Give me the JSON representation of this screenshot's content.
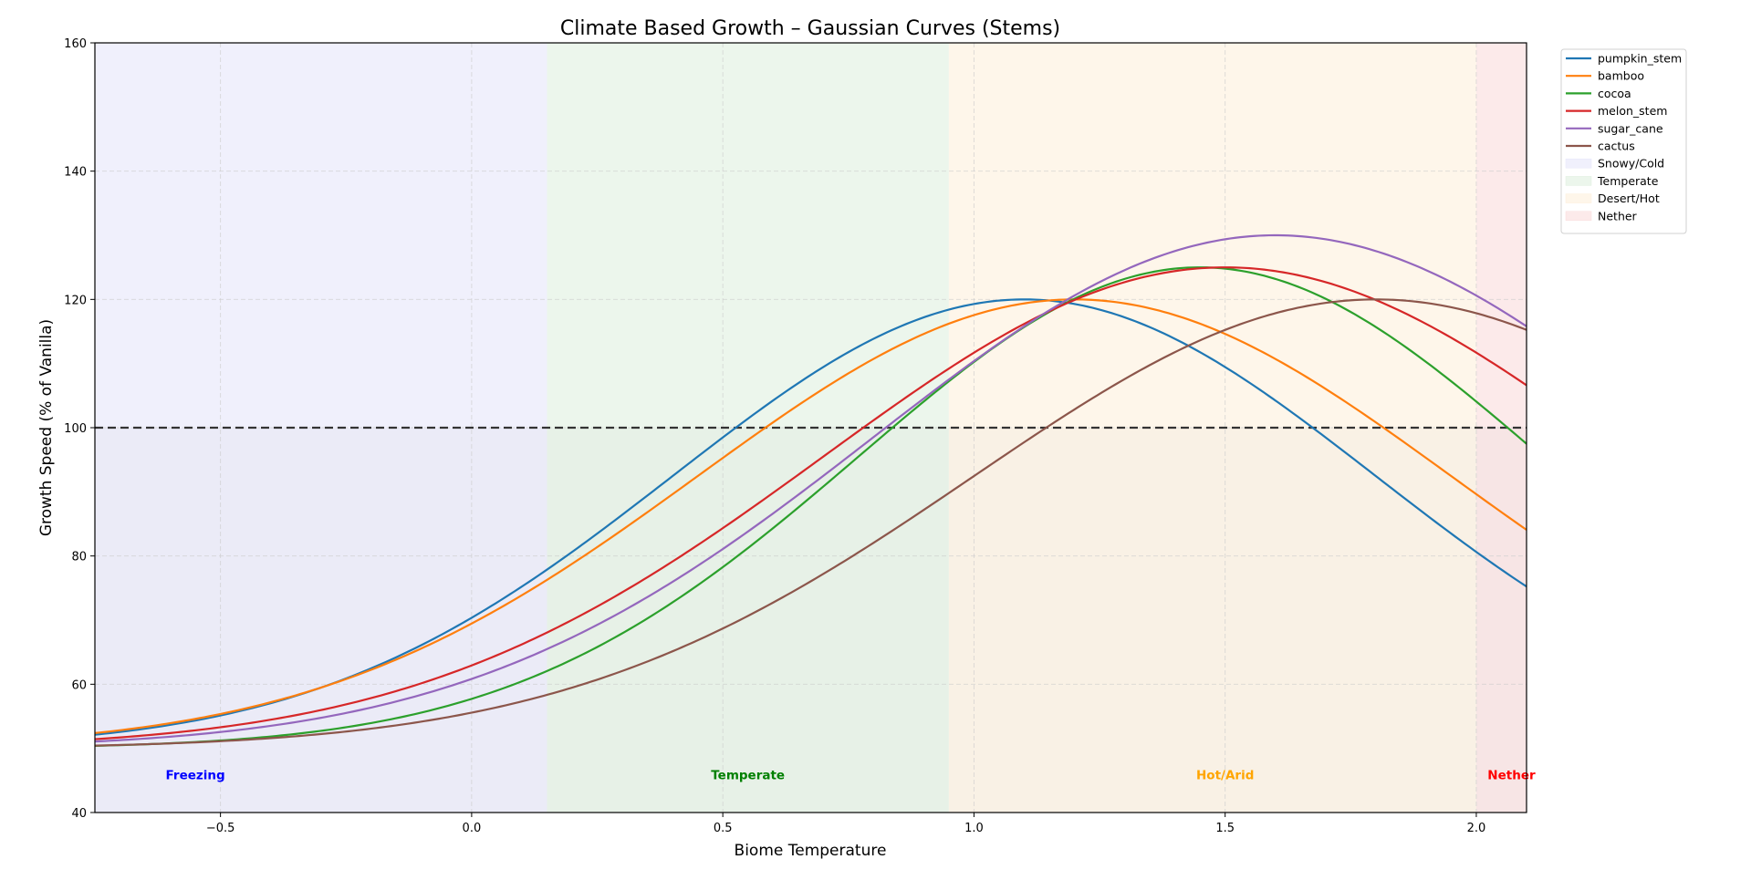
{
  "chart_data": {
    "type": "line",
    "title": "Climate Based Growth – Gaussian Curves (Stems)",
    "xlabel": "Biome Temperature",
    "ylabel": "Growth Speed (% of Vanilla)",
    "xlim": [
      -0.75,
      2.1
    ],
    "ylim": [
      40,
      160
    ],
    "xticks": [
      -0.5,
      0.0,
      0.5,
      1.0,
      1.5,
      2.0
    ],
    "xtick_labels": [
      "−0.5",
      "0.0",
      "0.5",
      "1.0",
      "1.5",
      "2.0"
    ],
    "yticks": [
      40,
      60,
      80,
      100,
      120,
      140,
      160
    ],
    "ytick_labels": [
      "40",
      "60",
      "80",
      "100",
      "120",
      "140",
      "160"
    ],
    "grid": true,
    "legend_position": "outside-top-right",
    "reference_line": {
      "y": 100,
      "color": "#333333",
      "style": "dashed"
    },
    "baseline": 50,
    "series": [
      {
        "name": "pumpkin_stem",
        "color": "#1f77b4",
        "peak_x": 1.1,
        "peak_y": 120,
        "sigma": 0.7
      },
      {
        "name": "bamboo",
        "color": "#ff7f0e",
        "peak_x": 1.2,
        "peak_y": 120,
        "sigma": 0.75
      },
      {
        "name": "cocoa",
        "color": "#2ca02c",
        "peak_x": 1.45,
        "peak_y": 125,
        "sigma": 0.68
      },
      {
        "name": "melon_stem",
        "color": "#d62728",
        "peak_x": 1.5,
        "peak_y": 125,
        "sigma": 0.8
      },
      {
        "name": "sugar_cane",
        "color": "#9467bd",
        "peak_x": 1.6,
        "peak_y": 130,
        "sigma": 0.8
      },
      {
        "name": "cactus",
        "color": "#8c564b",
        "peak_x": 1.8,
        "peak_y": 120,
        "sigma": 0.8
      }
    ],
    "sample_x": [
      -0.75,
      -0.5,
      0.0,
      0.5,
      1.0,
      1.5,
      2.0,
      2.1
    ],
    "sample_values": {
      "pumpkin_stem": [
        52.4,
        55.6,
        70.2,
        97.2,
        119.3,
        109.6,
        80.6,
        75.2
      ],
      "bamboo": [
        52.6,
        55.4,
        69.5,
        95.4,
        117.5,
        114.5,
        88.3,
        84.0
      ],
      "cocoa": [
        50.8,
        51.9,
        57.9,
        82.2,
        112.8,
        124.8,
        100.7,
        96.4
      ],
      "melon_stem": [
        51.4,
        53.0,
        62.3,
        84.4,
        110.1,
        125.0,
        110.1,
        106.3
      ],
      "sugar_cane": [
        51.1,
        52.4,
        61.0,
        80.8,
        110.4,
        129.4,
        119.3,
        115.8
      ],
      "cactus": [
        50.4,
        51.1,
        55.6,
        69.1,
        94.4,
        116.6,
        118.8,
        115.2
      ]
    },
    "zones": [
      {
        "name": "Snowy/Cold",
        "from": -0.75,
        "to": 0.15,
        "color": "#e6e6fa",
        "label": "Freezing",
        "label_color": "#0000ff",
        "label_x": -0.55
      },
      {
        "name": "Temperate",
        "from": 0.15,
        "to": 0.95,
        "color": "#e0f0e0",
        "label": "Temperate",
        "label_color": "#008000",
        "label_x": 0.55
      },
      {
        "name": "Desert/Hot",
        "from": 0.95,
        "to": 2.0,
        "color": "#fdf0dc",
        "label": "Hot/Arid",
        "label_color": "#ffa500",
        "label_x": 1.5
      },
      {
        "name": "Nether",
        "from": 2.0,
        "to": 2.1,
        "color": "#fadcdc",
        "label": "Nether",
        "label_color": "#ff0000",
        "label_x": 2.07
      }
    ]
  }
}
